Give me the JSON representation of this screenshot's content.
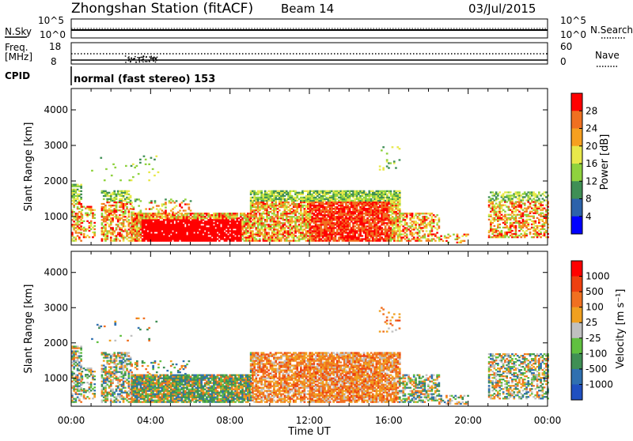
{
  "header": {
    "station": "Zhongshan Station (fitACF)",
    "beam": "Beam 14",
    "date": "03/Jul/2015"
  },
  "top_panels": {
    "nsky_label": "N.Sky",
    "nsky_ticks": [
      "10^5",
      "10^0"
    ],
    "nsearch_label": "N.Search",
    "nsearch_ticks": [
      "10^5",
      "10^0"
    ],
    "freq_label_1": "Freq.",
    "freq_label_2": "[MHz]",
    "freq_ticks": [
      "18",
      "8"
    ],
    "nave_label": "Nave",
    "nave_ticks": [
      "60",
      "0"
    ],
    "cpid_label": "CPID",
    "cpid_text": "normal (fast stereo) 153"
  },
  "chart_data": [
    {
      "type": "heatmap",
      "name": "power",
      "ylabel": "Slant Range [km]",
      "ylim": [
        200,
        4600
      ],
      "yticks": [
        1000,
        2000,
        3000,
        4000
      ],
      "xlim": [
        0,
        24
      ],
      "colorbar_label": "Power [dB]",
      "colorbar_ticks": [
        "28",
        "24",
        "20",
        "16",
        "12",
        "8",
        "4"
      ],
      "colors": [
        "#0000ff",
        "#2c62aa",
        "#3f8f55",
        "#8fd23e",
        "#e8e84a",
        "#f6a020",
        "#f07020",
        "#ff0000"
      ]
    },
    {
      "type": "heatmap",
      "name": "velocity",
      "ylabel": "Slant Range [km]",
      "ylim": [
        200,
        4600
      ],
      "yticks": [
        1000,
        2000,
        3000,
        4000
      ],
      "xlim": [
        0,
        24
      ],
      "colorbar_label": "Velocity [m s⁻¹]",
      "colorbar_ticks": [
        "1000",
        "500",
        "100",
        "25",
        "-25",
        "-100",
        "-500",
        "-1000"
      ],
      "colors": [
        "#2050c0",
        "#3070b0",
        "#3f8f55",
        "#60c040",
        "#c0c0c0",
        "#f0a020",
        "#f07020",
        "#ee4010",
        "#ff0000"
      ]
    }
  ],
  "xaxis": {
    "ticks": [
      "00:00",
      "04:00",
      "08:00",
      "12:00",
      "16:00",
      "20:00",
      "00:00"
    ],
    "label": "Time UT"
  }
}
